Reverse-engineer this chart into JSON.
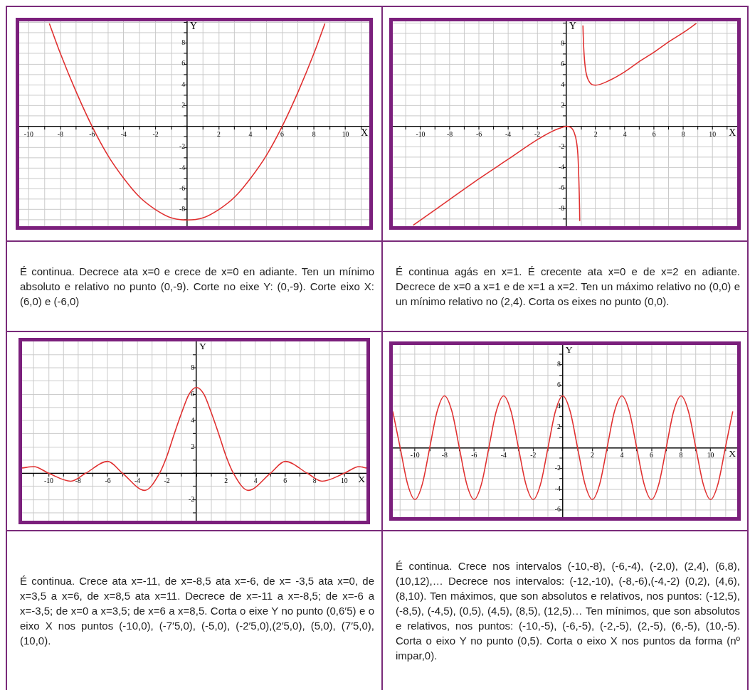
{
  "chart_data": [
    {
      "type": "line",
      "xlabel": "X",
      "ylabel": "Y",
      "xlim": [
        -10.6,
        11.5
      ],
      "ylim": [
        -9.6,
        10.1
      ],
      "grid": true,
      "xticks": [
        -10,
        {
          "value": -9,
          "label": null
        },
        -8,
        {
          "value": -7,
          "label": null
        },
        -6,
        {
          "value": -5,
          "label": null
        },
        -4,
        {
          "value": -3,
          "label": null
        },
        -2,
        {
          "value": -1,
          "label": null
        },
        {
          "value": 0,
          "label": null
        },
        {
          "value": 1,
          "label": null
        },
        2,
        {
          "value": 3,
          "label": null
        },
        4,
        {
          "value": 5,
          "label": null
        },
        6,
        {
          "value": 7,
          "label": null
        },
        8,
        {
          "value": 9,
          "label": null
        },
        10,
        {
          "value": 11,
          "label": null
        }
      ],
      "yticks": [
        {
          "value": -9,
          "label": null
        },
        -8,
        {
          "value": -7,
          "label": null
        },
        -6,
        {
          "value": -5,
          "label": null
        },
        -4,
        {
          "value": -3,
          "label": null
        },
        -2,
        {
          "value": -1,
          "label": null
        },
        {
          "value": 0,
          "label": null
        },
        {
          "value": 1,
          "label": null
        },
        2,
        {
          "value": 3,
          "label": null
        },
        4,
        {
          "value": 5,
          "label": null
        },
        6,
        {
          "value": 7,
          "label": null
        },
        8,
        {
          "value": 9,
          "label": null
        },
        {
          "value": 10,
          "label": null
        }
      ],
      "series": [
        {
          "color": "#e03030",
          "x": [
            -8.7,
            -8,
            -7,
            -6,
            -5,
            -4,
            -3,
            -2,
            -1,
            0,
            1,
            2,
            3,
            4,
            5,
            6,
            7,
            8,
            8.7
          ],
          "values": [
            9.9,
            7,
            3.3,
            0,
            -2.8,
            -5,
            -6.8,
            -8,
            -8.8,
            -9,
            -8.8,
            -8,
            -6.8,
            -5,
            -2.8,
            0,
            3.3,
            7,
            9.9
          ]
        }
      ]
    },
    {
      "type": "line",
      "xlabel": "X",
      "ylabel": "Y",
      "xlim": [
        -11.9,
        11.7
      ],
      "ylim": [
        -9.7,
        10.2
      ],
      "grid": true,
      "xticks": [
        {
          "value": -11,
          "label": null
        },
        -10,
        {
          "value": -9,
          "label": null
        },
        -8,
        {
          "value": -7,
          "label": null
        },
        -6,
        {
          "value": -5,
          "label": null
        },
        -4,
        {
          "value": -3,
          "label": null
        },
        -2,
        {
          "value": -1,
          "label": null
        },
        {
          "value": 0,
          "label": null
        },
        {
          "value": 1,
          "label": null
        },
        2,
        {
          "value": 3,
          "label": null
        },
        4,
        {
          "value": 5,
          "label": null
        },
        6,
        {
          "value": 7,
          "label": null
        },
        8,
        {
          "value": 9,
          "label": null
        },
        10,
        {
          "value": 11,
          "label": null
        }
      ],
      "yticks": [
        {
          "value": -9,
          "label": null
        },
        -8,
        {
          "value": -7,
          "label": null
        },
        -6,
        {
          "value": -5,
          "label": null
        },
        -4,
        {
          "value": -3,
          "label": null
        },
        -2,
        {
          "value": -1,
          "label": null
        },
        {
          "value": 0,
          "label": null
        },
        {
          "value": 1,
          "label": null
        },
        2,
        {
          "value": 3,
          "label": null
        },
        4,
        {
          "value": 5,
          "label": null
        },
        6,
        {
          "value": 7,
          "label": null
        },
        8,
        {
          "value": 9,
          "label": null
        },
        {
          "value": 10,
          "label": null
        }
      ],
      "series": [
        {
          "color": "#e03030",
          "x": [
            -10.5,
            -8,
            -6,
            -4,
            -2,
            -1,
            -0.5,
            0,
            0.3,
            0.5,
            0.7,
            0.8,
            0.9,
            0.91,
            1,
            1.13,
            1.15,
            1.2,
            1.3,
            1.5,
            2,
            3,
            4,
            5,
            6,
            7,
            8,
            8.9
          ],
          "values": [
            -9.6,
            -7.1,
            -5.1,
            -3.2,
            -1.3,
            -0.5,
            -0.2,
            0,
            -0.1,
            -0.5,
            -1.6,
            -3.2,
            -8.1,
            -9.2,
            null,
            9.8,
            8.8,
            7.2,
            5.6,
            4.5,
            4,
            4.5,
            5.3,
            6.3,
            7.2,
            8.2,
            9.1,
            10
          ]
        }
      ]
    },
    {
      "type": "other",
      "annotations": [
        "É continua. Decrece ata x=0 e crece de x=0 en adiante. Ten un mínimo absoluto e relativo no punto (0,-9). Corte no eixe Y: (0,-9). Corte eixo X: (6,0) e (-6,0)"
      ]
    },
    {
      "type": "other",
      "annotations": [
        "É continua agás en x=1. É crecente ata x=0 e de x=2 en adiante. Decrece de x=0 a x=1 e de x=1 a x=2. Ten un máximo relativo no (0,0) e un mínimo relativo no (2,4). Corta os eixes no punto (0,0)."
      ]
    },
    {
      "type": "line",
      "xlabel": "X",
      "ylabel": "Y",
      "xlim": [
        -11.8,
        11.5
      ],
      "ylim": [
        -3.6,
        10
      ],
      "grid": true,
      "xticks": [
        {
          "value": -11,
          "label": null
        },
        -10,
        {
          "value": -9,
          "label": null
        },
        -8,
        {
          "value": -7,
          "label": null
        },
        -6,
        {
          "value": -5,
          "label": null
        },
        -4,
        {
          "value": -3,
          "label": null
        },
        -2,
        {
          "value": -1,
          "label": null
        },
        {
          "value": 0,
          "label": null
        },
        {
          "value": 1,
          "label": null
        },
        2,
        {
          "value": 3,
          "label": null
        },
        4,
        {
          "value": 5,
          "label": null
        },
        6,
        {
          "value": 7,
          "label": null
        },
        8,
        {
          "value": 9,
          "label": null
        },
        10,
        {
          "value": 11,
          "label": null
        }
      ],
      "yticks": [
        {
          "value": -3,
          "label": null
        },
        -2,
        {
          "value": -1,
          "label": null
        },
        {
          "value": 0,
          "label": null
        },
        {
          "value": 1,
          "label": null
        },
        2,
        {
          "value": 3,
          "label": null
        },
        4,
        {
          "value": 5,
          "label": null
        },
        6,
        {
          "value": 7,
          "label": null
        },
        8,
        {
          "value": 9,
          "label": null
        }
      ],
      "series": [
        {
          "color": "#e03030",
          "x": [
            -11.8,
            -11,
            -10,
            -8.5,
            -7.5,
            -6,
            -5,
            -3.5,
            -2.5,
            -2,
            -1.5,
            -1,
            -0.5,
            0,
            0.5,
            1,
            1.5,
            2,
            2.5,
            3.5,
            5,
            6,
            7.5,
            8.5,
            10,
            11,
            11.5
          ],
          "values": [
            0.4,
            0.5,
            0,
            -0.6,
            0,
            0.9,
            0,
            -1.3,
            0,
            1.3,
            3,
            4.6,
            6,
            6.5,
            6,
            4.6,
            3,
            1.3,
            0,
            -1.3,
            0,
            0.9,
            0,
            -0.6,
            0,
            0.5,
            0.4
          ]
        }
      ]
    },
    {
      "type": "line",
      "xlabel": "X",
      "ylabel": "Y",
      "xlim": [
        -11.5,
        11.8
      ],
      "ylim": [
        -6.7,
        9.9
      ],
      "grid": true,
      "xticks": [
        {
          "value": -11,
          "label": null
        },
        -10,
        {
          "value": -9,
          "label": null
        },
        -8,
        {
          "value": -7,
          "label": null
        },
        -6,
        {
          "value": -5,
          "label": null
        },
        -4,
        {
          "value": -3,
          "label": null
        },
        -2,
        {
          "value": -1,
          "label": null
        },
        {
          "value": 0,
          "label": null
        },
        {
          "value": 1,
          "label": null
        },
        2,
        {
          "value": 3,
          "label": null
        },
        4,
        {
          "value": 5,
          "label": null
        },
        6,
        {
          "value": 7,
          "label": null
        },
        8,
        {
          "value": 9,
          "label": null
        },
        10,
        {
          "value": 11,
          "label": null
        }
      ],
      "yticks": [
        -6,
        {
          "value": -5,
          "label": null
        },
        -4,
        {
          "value": -3,
          "label": null
        },
        -2,
        {
          "value": -1,
          "label": null
        },
        {
          "value": 0,
          "label": null
        },
        {
          "value": 1,
          "label": null
        },
        2,
        {
          "value": 3,
          "label": null
        },
        4,
        {
          "value": 5,
          "label": null
        },
        6,
        {
          "value": 7,
          "label": null
        },
        8,
        {
          "value": 9,
          "label": null
        }
      ],
      "series": [
        {
          "color": "#e03030",
          "x": [
            -11.5,
            -11,
            -10.5,
            -10,
            -9.5,
            -9,
            -8.5,
            -8,
            -7.5,
            -7,
            -6.5,
            -6,
            -5.5,
            -5,
            -4.5,
            -4,
            -3.5,
            -3,
            -2.5,
            -2,
            -1.5,
            -1,
            -0.5,
            0,
            0.5,
            1,
            1.5,
            2,
            2.5,
            3,
            3.5,
            4,
            4.5,
            5,
            5.5,
            6,
            6.5,
            7,
            7.5,
            8,
            8.5,
            9,
            9.5,
            10,
            10.5,
            11,
            11.5
          ],
          "values": [
            3.5,
            0,
            -3.5,
            -5,
            -3.5,
            0,
            3.5,
            5,
            3.5,
            0,
            -3.5,
            -5,
            -3.5,
            0,
            3.5,
            5,
            3.5,
            0,
            -3.5,
            -5,
            -3.5,
            0,
            3.5,
            5,
            3.5,
            0,
            -3.5,
            -5,
            -3.5,
            0,
            3.5,
            5,
            3.5,
            0,
            -3.5,
            -5,
            -3.5,
            0,
            3.5,
            5,
            3.5,
            0,
            -3.5,
            -5,
            -3.5,
            0,
            3.5
          ]
        }
      ]
    },
    {
      "type": "other",
      "annotations": [
        "É continua. Crece ata x=-11, de x=-8,5 ata x=-6, de x= -3,5 ata x=0, de x=3,5 a x=6, de x=8,5 ata x=11. Decrece de x=-11 a x=-8,5; de x=-6 a x=-3,5; de x=0 a x=3,5; de x=6 a x=8,5. Corta o eixe Y no punto (0,6′5) e o eixo X nos puntos (-10,0), (-7′5,0), (-5,0), (-2′5,0),(2′5,0), (5,0), (7′5,0), (10,0)."
      ]
    },
    {
      "type": "other",
      "annotations": [
        "É continua. Crece nos intervalos (-10,-8), (-6,-4), (-2,0), (2,4), (6,8), (10,12),… Decrece nos intervalos: (-12,-10), (-8,-6),(-4,-2) (0,2), (4,6), (8,10). Ten máximos, que son absolutos e relativos, nos puntos: (-12,5), (-8,5), (-4,5), (0,5), (4,5), (8,5), (12,5)… Ten mínimos, que son absolutos e relativos, nos puntos: (-10,-5), (-6,-5), (-2,-5), (2,-5), (6,-5), (10,-5). Corta o eixo Y no punto (0,5). Corta o eixo X nos puntos da forma (nº impar,0)."
      ]
    }
  ]
}
